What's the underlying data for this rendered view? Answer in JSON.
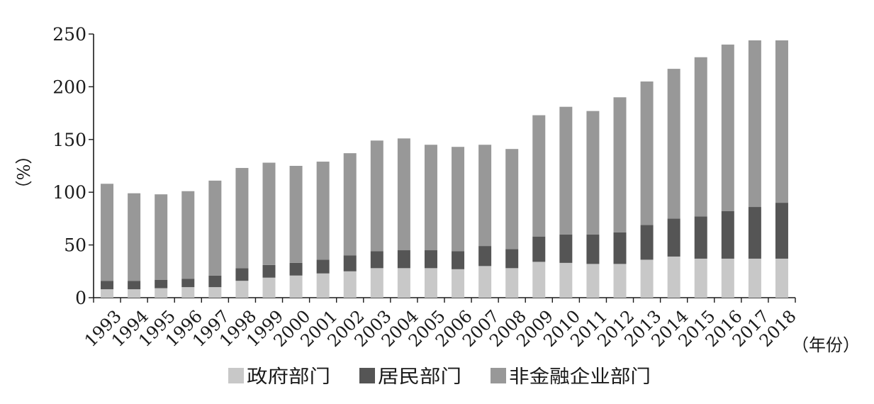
{
  "chart_data": {
    "type": "bar",
    "stacked": true,
    "categories": [
      "1993",
      "1994",
      "1995",
      "1996",
      "1997",
      "1998",
      "1999",
      "2000",
      "2001",
      "2002",
      "2003",
      "2004",
      "2005",
      "2006",
      "2007",
      "2008",
      "2009",
      "2010",
      "2011",
      "2012",
      "2013",
      "2014",
      "2015",
      "2016",
      "2017",
      "2018"
    ],
    "series": [
      {
        "name": "政府部门",
        "color": "#c8c8c8",
        "values": [
          8,
          8,
          9,
          10,
          10,
          16,
          19,
          21,
          23,
          25,
          28,
          28,
          28,
          27,
          30,
          28,
          34,
          33,
          32,
          32,
          36,
          39,
          37,
          37,
          37,
          37
        ]
      },
      {
        "name": "居民部门",
        "color": "#555555",
        "values": [
          8,
          8,
          8,
          8,
          11,
          12,
          12,
          12,
          13,
          15,
          16,
          17,
          17,
          17,
          19,
          18,
          24,
          27,
          28,
          30,
          33,
          36,
          40,
          45,
          49,
          53
        ]
      },
      {
        "name": "非金融企业部门",
        "color": "#989898",
        "values": [
          92,
          83,
          81,
          83,
          90,
          95,
          97,
          92,
          93,
          97,
          105,
          106,
          100,
          99,
          96,
          95,
          115,
          121,
          117,
          128,
          136,
          142,
          151,
          158,
          158,
          154
        ]
      }
    ],
    "ylabel": "（%）",
    "xlabel": "（年份）",
    "ylim": [
      0,
      250
    ],
    "yticks": [
      "0",
      "50",
      "100",
      "150",
      "200",
      "250"
    ],
    "grid": false,
    "legend_position": "bottom"
  }
}
